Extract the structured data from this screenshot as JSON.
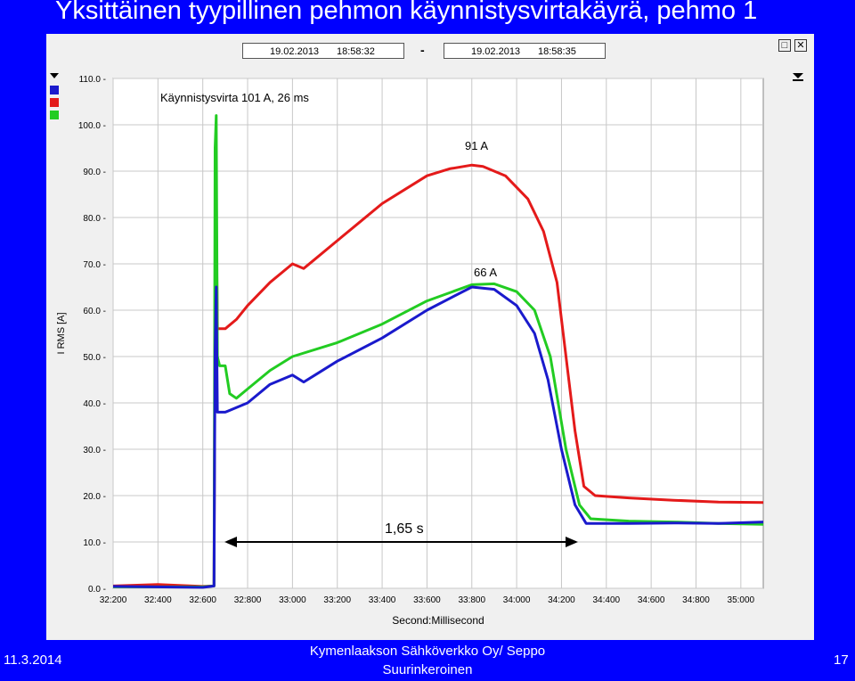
{
  "slide": {
    "title": "Yksittäinen tyypillinen pehmon käynnistysvirtakäyrä, pehmo 1",
    "date": "11.3.2014",
    "org_line1": "Kymenlaakson Sähköverkko Oy/ Seppo",
    "org_line2": "Suurinkeroinen",
    "page": "17"
  },
  "window": {
    "start_date": "19.02.2013",
    "start_time": "18:58:32",
    "separator": "-",
    "end_date": "19.02.2013",
    "end_time": "18:58:35"
  },
  "colors": {
    "red": "#e41a1a",
    "green": "#22cc22",
    "blue": "#1a1acc",
    "background": "#0000ff"
  },
  "chart_data": {
    "type": "line",
    "xlabel": "Second:Millisecond",
    "ylabel": "I RMS [A]",
    "ylim": [
      0,
      110
    ],
    "xlim": [
      32.2,
      35.1
    ],
    "yticks": [
      "0.0",
      "10.0",
      "20.0",
      "30.0",
      "40.0",
      "50.0",
      "60.0",
      "70.0",
      "80.0",
      "90.0",
      "100.0",
      "110.0"
    ],
    "xticks": [
      "32:200",
      "32:400",
      "32:600",
      "32:800",
      "33:000",
      "33:200",
      "33:400",
      "33:600",
      "33:800",
      "34:000",
      "34:200",
      "34:400",
      "34:600",
      "34:800",
      "35:000"
    ],
    "series": [
      {
        "color": "red",
        "points": [
          [
            32.2,
            0.5
          ],
          [
            32.4,
            0.8
          ],
          [
            32.6,
            0.4
          ],
          [
            32.65,
            0.5
          ],
          [
            32.655,
            65
          ],
          [
            32.66,
            81
          ],
          [
            32.665,
            56
          ],
          [
            32.7,
            56
          ],
          [
            32.75,
            58
          ],
          [
            32.8,
            61
          ],
          [
            32.9,
            66
          ],
          [
            33.0,
            70
          ],
          [
            33.05,
            69
          ],
          [
            33.1,
            71
          ],
          [
            33.2,
            75
          ],
          [
            33.3,
            79
          ],
          [
            33.4,
            83
          ],
          [
            33.5,
            86
          ],
          [
            33.6,
            89
          ],
          [
            33.7,
            90.5
          ],
          [
            33.8,
            91.3
          ],
          [
            33.85,
            91
          ],
          [
            33.95,
            89
          ],
          [
            34.05,
            84
          ],
          [
            34.12,
            77
          ],
          [
            34.18,
            66
          ],
          [
            34.22,
            50
          ],
          [
            34.26,
            34
          ],
          [
            34.3,
            22
          ],
          [
            34.35,
            20
          ],
          [
            34.5,
            19.5
          ],
          [
            34.7,
            19
          ],
          [
            34.9,
            18.6
          ],
          [
            35.1,
            18.5
          ]
        ]
      },
      {
        "color": "green",
        "points": [
          [
            32.2,
            0.3
          ],
          [
            32.6,
            0.3
          ],
          [
            32.65,
            0.5
          ],
          [
            32.655,
            95
          ],
          [
            32.66,
            102
          ],
          [
            32.665,
            50
          ],
          [
            32.675,
            48
          ],
          [
            32.7,
            48
          ],
          [
            32.72,
            42
          ],
          [
            32.75,
            41
          ],
          [
            32.8,
            43
          ],
          [
            32.9,
            47
          ],
          [
            33.0,
            50
          ],
          [
            33.2,
            53
          ],
          [
            33.4,
            57
          ],
          [
            33.6,
            62
          ],
          [
            33.8,
            65.5
          ],
          [
            33.9,
            65.7
          ],
          [
            34.0,
            64
          ],
          [
            34.08,
            60
          ],
          [
            34.15,
            50
          ],
          [
            34.22,
            30
          ],
          [
            34.28,
            18
          ],
          [
            34.33,
            15
          ],
          [
            34.5,
            14.5
          ],
          [
            34.7,
            14.3
          ],
          [
            34.9,
            14
          ],
          [
            35.1,
            13.8
          ]
        ]
      },
      {
        "color": "blue",
        "points": [
          [
            32.2,
            0.4
          ],
          [
            32.6,
            0.2
          ],
          [
            32.65,
            0.5
          ],
          [
            32.655,
            51
          ],
          [
            32.66,
            65
          ],
          [
            32.665,
            38
          ],
          [
            32.7,
            38
          ],
          [
            32.8,
            40
          ],
          [
            32.9,
            44
          ],
          [
            33.0,
            46
          ],
          [
            33.05,
            44.5
          ],
          [
            33.1,
            46
          ],
          [
            33.2,
            49
          ],
          [
            33.4,
            54
          ],
          [
            33.6,
            60
          ],
          [
            33.8,
            65
          ],
          [
            33.9,
            64.5
          ],
          [
            34.0,
            61
          ],
          [
            34.08,
            55
          ],
          [
            34.14,
            45
          ],
          [
            34.2,
            30
          ],
          [
            34.26,
            18
          ],
          [
            34.31,
            14
          ],
          [
            34.5,
            14
          ],
          [
            34.7,
            14.1
          ],
          [
            34.9,
            14
          ],
          [
            35.1,
            14.3
          ]
        ]
      }
    ],
    "annotations": {
      "inrush": "Käynnistysvirta 101 A, 26 ms",
      "red_peak": "91 A",
      "green_peak": "66 A",
      "duration": "1,65 s"
    }
  }
}
